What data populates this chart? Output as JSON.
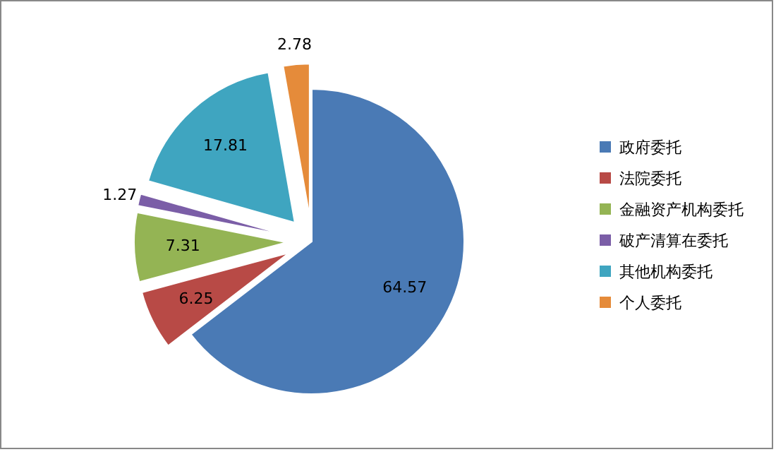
{
  "chart_data": {
    "type": "pie",
    "categories": [
      "政府委托",
      "法院委托",
      "金融资产机构委托",
      "破产清算在委托",
      "其他机构委托",
      "个人委托"
    ],
    "values": [
      64.57,
      6.25,
      7.31,
      1.27,
      17.81,
      2.78
    ],
    "colors": [
      "#4a7ab5",
      "#b84a46",
      "#94b454",
      "#7b5ea7",
      "#3fa5c0",
      "#e58b3a"
    ],
    "data_labels": true,
    "legend": "right"
  }
}
